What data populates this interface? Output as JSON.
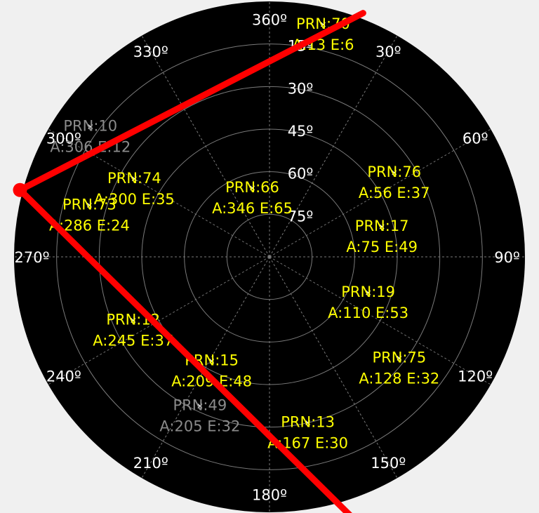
{
  "plot": {
    "background": "#000000",
    "grid_color": "#7a7a7a",
    "label_color": "#ffffff",
    "used_color": "#ffff00",
    "unused_color": "#8a8a8a",
    "mask_color": "#ff0000"
  },
  "elevation_rings": [
    {
      "value": 15,
      "label": "15º"
    },
    {
      "value": 30,
      "label": "30º"
    },
    {
      "value": 45,
      "label": "45º"
    },
    {
      "value": 60,
      "label": "60º"
    },
    {
      "value": 75,
      "label": "75º"
    }
  ],
  "azimuth_labels": [
    {
      "value": 0,
      "label": "360º"
    },
    {
      "value": 30,
      "label": "30º"
    },
    {
      "value": 60,
      "label": "60º"
    },
    {
      "value": 90,
      "label": "90º"
    },
    {
      "value": 120,
      "label": "120º"
    },
    {
      "value": 150,
      "label": "150º"
    },
    {
      "value": 180,
      "label": "180º"
    },
    {
      "value": 210,
      "label": "210º"
    },
    {
      "value": 240,
      "label": "240º"
    },
    {
      "value": 270,
      "label": "270º"
    },
    {
      "value": 300,
      "label": "300º"
    },
    {
      "value": 330,
      "label": "330º"
    }
  ],
  "satellites": [
    {
      "prn": "PRN:70",
      "info": "A:13 E:6",
      "az": 13,
      "el": 6,
      "used": true
    },
    {
      "prn": "PRN:10",
      "info": "A:306 E:12",
      "az": 306,
      "el": 12,
      "used": false
    },
    {
      "prn": "PRN:74",
      "info": "A:300 E:35",
      "az": 300,
      "el": 35,
      "used": true
    },
    {
      "prn": "PRN:73",
      "info": "A:286 E:24",
      "az": 286,
      "el": 24,
      "used": true
    },
    {
      "prn": "PRN:66",
      "info": "A:346 E:65",
      "az": 346,
      "el": 65,
      "used": true
    },
    {
      "prn": "PRN:76",
      "info": "A:56 E:37",
      "az": 56,
      "el": 37,
      "used": true
    },
    {
      "prn": "PRN:17",
      "info": "A:75 E:49",
      "az": 75,
      "el": 49,
      "used": true
    },
    {
      "prn": "PRN:19",
      "info": "A:110 E:53",
      "az": 110,
      "el": 53,
      "used": true
    },
    {
      "prn": "PRN:12",
      "info": "A:245 E:37",
      "az": 245,
      "el": 37,
      "used": true
    },
    {
      "prn": "PRN:15",
      "info": "A:209 E:48",
      "az": 209,
      "el": 48,
      "used": true
    },
    {
      "prn": "PRN:75",
      "info": "A:128 E:32",
      "az": 128,
      "el": 32,
      "used": true
    },
    {
      "prn": "PRN:49",
      "info": "A:205 E:32",
      "az": 205,
      "el": 32,
      "used": false
    },
    {
      "prn": "PRN:13",
      "info": "A:167 E:30",
      "az": 167,
      "el": 30,
      "used": true
    }
  ],
  "mask_segments": [
    {
      "from": {
        "az": 21,
        "el": -2
      },
      "to": {
        "az": 285,
        "el": -1
      }
    },
    {
      "from": {
        "az": 285,
        "el": -1
      },
      "to": {
        "az": 161,
        "el": -11
      }
    }
  ]
}
